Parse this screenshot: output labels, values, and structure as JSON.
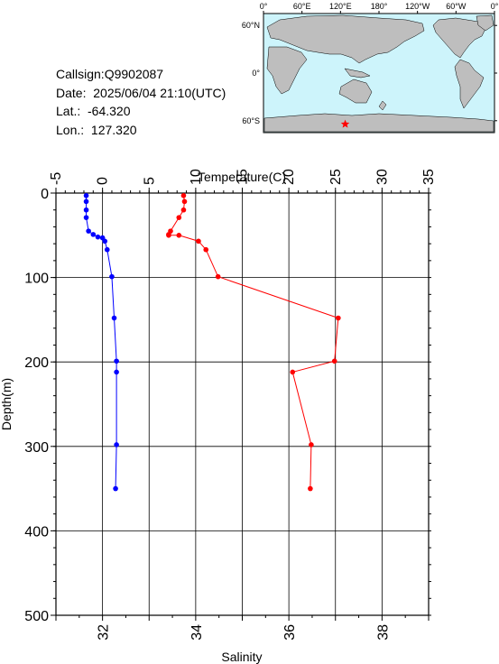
{
  "info": {
    "callsign": "Callsign:Q9902087",
    "date": "Date:  2025/06/04 21:10(UTC)",
    "lat": "Lat.:  -64.320",
    "lon": "Lon.:  127.320"
  },
  "map": {
    "lon_labels": [
      "0°",
      "60°E",
      "120°E",
      "180°",
      "120°W",
      "60°W",
      "0°"
    ],
    "lat_labels": [
      "60°N",
      "0°",
      "60°S"
    ],
    "ocean_color": "#cdf4fb",
    "land_color": "#bebebe",
    "marker": {
      "lat": -64.32,
      "lon": 127.32,
      "color": "#ff0000",
      "icon": "star-icon"
    }
  },
  "chart_data": {
    "type": "line",
    "ylabel": "Depth(m)",
    "top_axis": {
      "title": "Temperature(C)",
      "ticks": [
        -5,
        0,
        5,
        10,
        15,
        20,
        25,
        30,
        35
      ],
      "range": [
        -5,
        35
      ]
    },
    "bottom_axis": {
      "title": "Salinity",
      "ticks": [
        32,
        34,
        36,
        38
      ],
      "range": [
        31,
        39
      ]
    },
    "y_ticks": [
      0,
      100,
      200,
      300,
      400,
      500
    ],
    "ylim": [
      0,
      500
    ],
    "grid": true,
    "series": [
      {
        "variable": "Temperature",
        "axis": "top",
        "color": "#ff0000",
        "points": [
          {
            "x": 8.7,
            "y": 3
          },
          {
            "x": 8.8,
            "y": 10
          },
          {
            "x": 8.7,
            "y": 20
          },
          {
            "x": 8.2,
            "y": 29
          },
          {
            "x": 7.3,
            "y": 45
          },
          {
            "x": 7.1,
            "y": 49
          },
          {
            "x": 7.1,
            "y": 50
          },
          {
            "x": 8.2,
            "y": 50
          },
          {
            "x": 10.3,
            "y": 57
          },
          {
            "x": 11.1,
            "y": 67
          },
          {
            "x": 12.4,
            "y": 99
          },
          {
            "x": 25.3,
            "y": 148
          },
          {
            "x": 24.9,
            "y": 199
          },
          {
            "x": 20.4,
            "y": 212
          },
          {
            "x": 22.4,
            "y": 298
          },
          {
            "x": 22.3,
            "y": 350
          }
        ]
      },
      {
        "variable": "Salinity",
        "axis": "bottom",
        "color": "#0000ff",
        "points": [
          {
            "x": 31.65,
            "y": 3
          },
          {
            "x": 31.65,
            "y": 10
          },
          {
            "x": 31.65,
            "y": 20
          },
          {
            "x": 31.65,
            "y": 29
          },
          {
            "x": 31.7,
            "y": 45
          },
          {
            "x": 31.8,
            "y": 49
          },
          {
            "x": 31.9,
            "y": 52
          },
          {
            "x": 32.0,
            "y": 53
          },
          {
            "x": 32.05,
            "y": 57
          },
          {
            "x": 32.1,
            "y": 67
          },
          {
            "x": 32.2,
            "y": 99
          },
          {
            "x": 32.25,
            "y": 148
          },
          {
            "x": 32.3,
            "y": 199
          },
          {
            "x": 32.3,
            "y": 212
          },
          {
            "x": 32.3,
            "y": 298
          },
          {
            "x": 32.28,
            "y": 350
          }
        ]
      }
    ]
  }
}
